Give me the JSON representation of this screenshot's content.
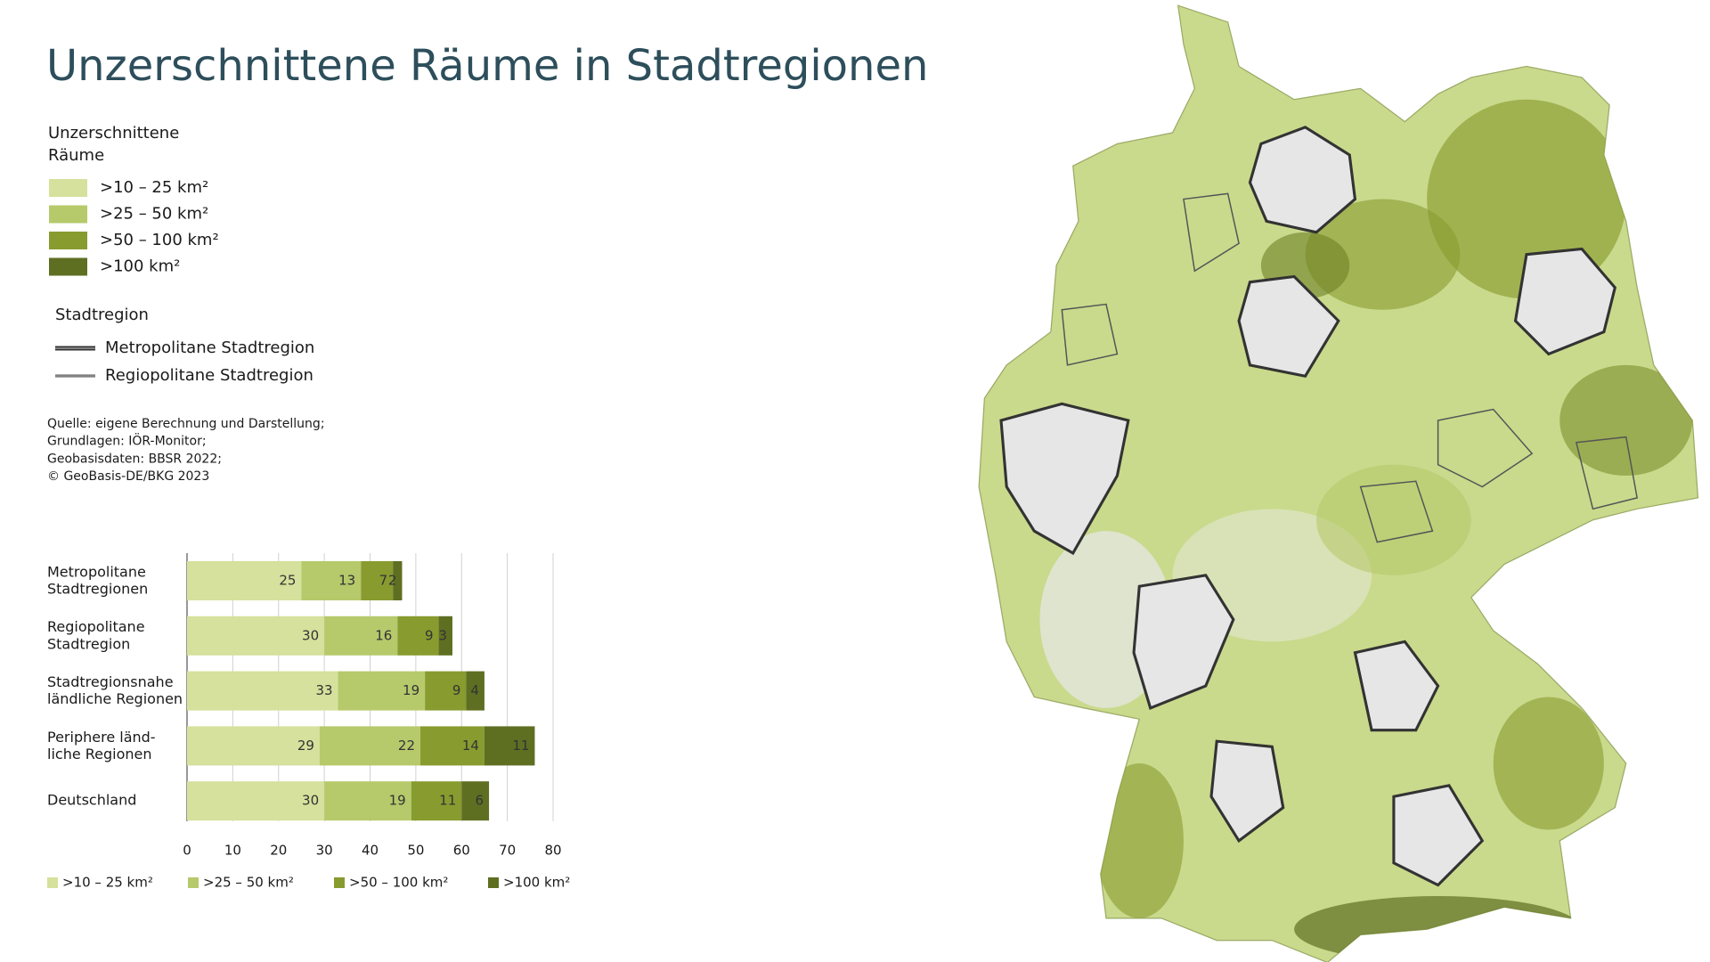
{
  "title": "Unzerschnittene Räume in Stadtregionen",
  "map_legend": {
    "title": [
      "Unzerschnittene",
      "Räume"
    ],
    "items": [
      {
        "label": ">10 – 25 km²",
        "color": "#d5e19c"
      },
      {
        "label": ">25 – 50 km²",
        "color": "#b6c96b"
      },
      {
        "label": ">50 – 100 km²",
        "color": "#889b2f"
      },
      {
        "label": ">100 km²",
        "color": "#5e6f22"
      }
    ]
  },
  "region_legend": {
    "title": "Stadtregion",
    "items": [
      "Metropolitane Stadtregion",
      "Regiopolitane Stadtregion"
    ]
  },
  "source": [
    "Quelle: eigene Berechnung und Darstellung;",
    "Grundlagen: IÖR-Monitor;",
    "Geobasisdaten: BBSR 2022;",
    "© GeoBasis-DE/BKG 2023"
  ],
  "chart_data": {
    "type": "stacked_bar_horizontal",
    "categories": [
      "Metropolitane\nStadtregionen",
      "Regiopolitane\nStadtregion",
      "Stadtregionsnahe\nländliche Regionen",
      "Periphere länd-\nliche Regionen",
      "Deutschland"
    ],
    "series": [
      {
        "name": ">10 – 25 km²",
        "color": "#d5e19c",
        "values": [
          25,
          30,
          33,
          29,
          30
        ]
      },
      {
        "name": ">25 – 50 km²",
        "color": "#b6c96b",
        "values": [
          13,
          16,
          19,
          22,
          19
        ]
      },
      {
        "name": ">50 – 100 km²",
        "color": "#889b2f",
        "values": [
          7,
          9,
          9,
          14,
          11
        ]
      },
      {
        "name": ">100 km²",
        "color": "#5e6f22",
        "values": [
          2,
          3,
          4,
          11,
          6
        ]
      }
    ],
    "xlim": [
      0,
      80
    ],
    "xticks": [
      0,
      10,
      20,
      30,
      40,
      50,
      60,
      70,
      80
    ],
    "grid": true
  }
}
